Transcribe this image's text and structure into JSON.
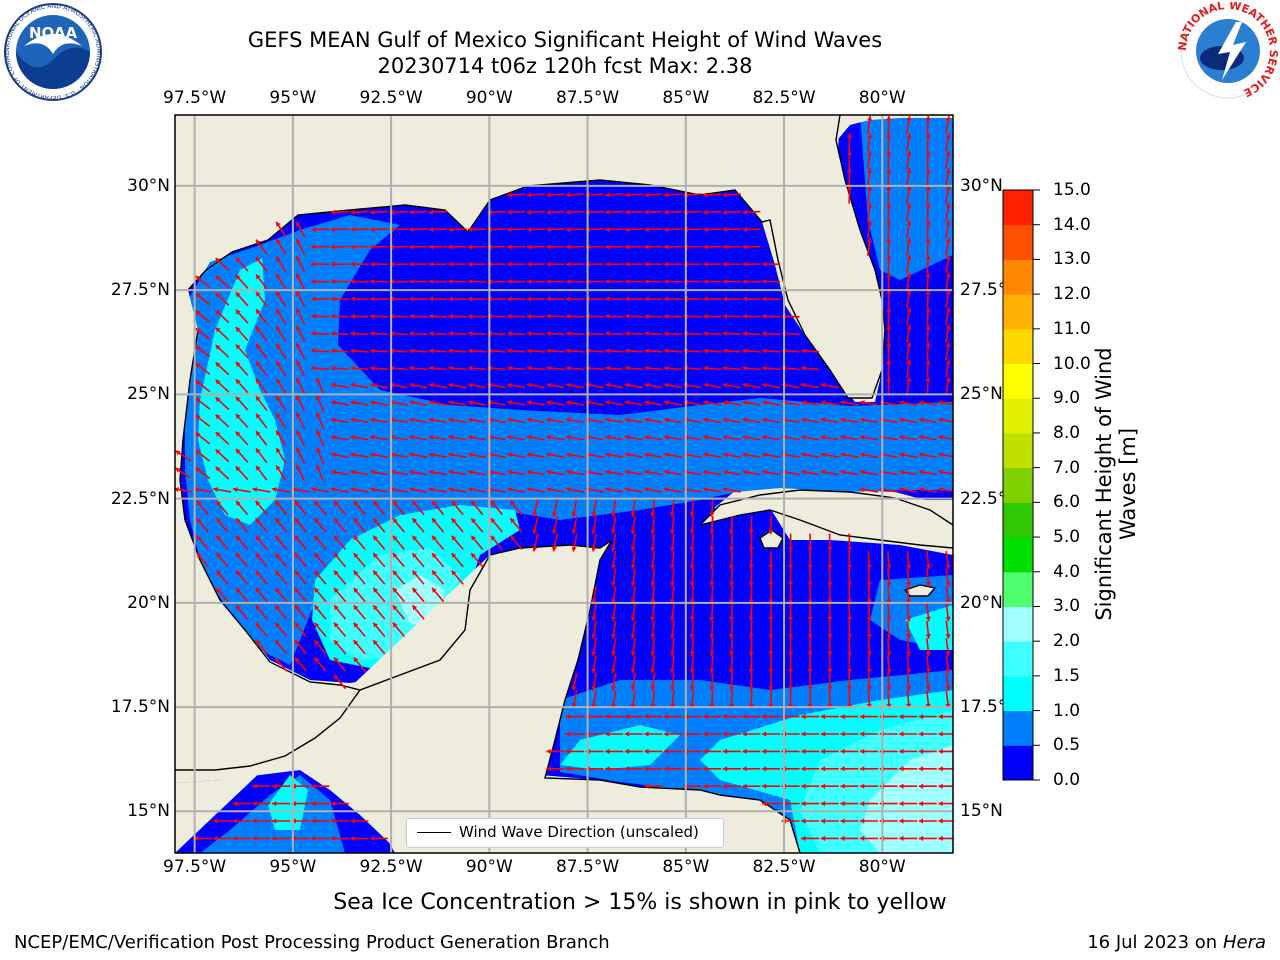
{
  "header": {
    "title_line1": "GEFS MEAN Gulf of Mexico Significant Height of Wind Waves",
    "title_line2": "20230714 t06z 120h fcst   Max: 2.38"
  },
  "map": {
    "lon_labels": [
      "97.5°W",
      "95°W",
      "92.5°W",
      "90°W",
      "87.5°W",
      "85°W",
      "82.5°W",
      "80°W"
    ],
    "lat_labels": [
      "30°N",
      "27.5°N",
      "25°N",
      "22.5°N",
      "20°N",
      "17.5°N",
      "15°N"
    ],
    "right_lat_labels": [
      "30°N",
      "27.5°N",
      "25°N",
      "22.5°N",
      "20°N",
      "17.5°N",
      "15°N"
    ],
    "lon_range": [
      -98,
      -78.2
    ],
    "lat_range": [
      14,
      31.7
    ],
    "legend_label": "Wind Wave Direction (unscaled)",
    "land_color": "#eeecdc",
    "arrow_color": "#ff0000"
  },
  "colorbar": {
    "label_line1": "Significant Height of Wind",
    "label_line2": "Waves [m]",
    "ticks": [
      "0.0",
      "0.5",
      "1.0",
      "1.5",
      "2.0",
      "3.0",
      "4.0",
      "5.0",
      "6.0",
      "7.0",
      "8.0",
      "9.0",
      "10.0",
      "11.0",
      "12.0",
      "13.0",
      "14.0",
      "15.0"
    ],
    "colors": [
      "#0000ff",
      "#0080ff",
      "#00ffff",
      "#40ffff",
      "#a0ffff",
      "#50ff70",
      "#00e000",
      "#30c800",
      "#80d000",
      "#c0e000",
      "#e0f000",
      "#ffff00",
      "#ffd800",
      "#ffb000",
      "#ff8800",
      "#ff5000",
      "#ff2000",
      "#ff0000"
    ]
  },
  "footer": {
    "subtitle": "Sea Ice Concentration > 15% is shown in pink to yellow",
    "left": "NCEP/EMC/Verification Post Processing Product Generation Branch",
    "right_date": "16 Jul 2023 on",
    "right_machine": "Hera"
  },
  "logos": {
    "noaa_text": "NOAA",
    "noaa_ring_text": "NATIONAL OCEANIC AND ATMOSPHERIC ADMINISTRATION · U.S. DEPARTMENT OF COMMERCE",
    "nws_ring_text": "NATIONAL WEATHER SERVICE"
  }
}
